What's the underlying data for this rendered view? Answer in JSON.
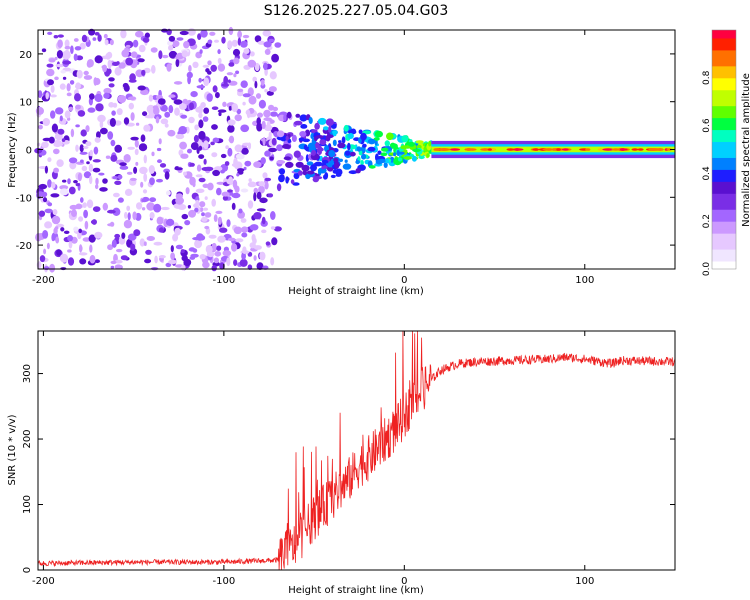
{
  "title": "S126.2025.227.05.04.G03",
  "colors": {
    "axis": "#000000",
    "snr_line": "#ee2222",
    "colormap": [
      "#ffffff",
      "#f0e6ff",
      "#e6c8ff",
      "#cc99ff",
      "#a366ff",
      "#7a2ee6",
      "#5a10d0",
      "#1e1eff",
      "#0080ff",
      "#00d0ff",
      "#00ffc0",
      "#00ff40",
      "#60ff00",
      "#c0ff00",
      "#ffff00",
      "#ffc000",
      "#ff7000",
      "#ff2000",
      "#ff0040"
    ]
  },
  "chart_data": [
    {
      "type": "heatmap",
      "name": "spectrogram",
      "xlabel": "Height of straight line (km)",
      "ylabel": "Frequency (Hz)",
      "xlim": [
        -203,
        150
      ],
      "ylim": [
        -25,
        25
      ],
      "xticks": [
        -200,
        -100,
        0,
        100
      ],
      "yticks": [
        -20,
        -10,
        0,
        10,
        20
      ],
      "noise_region_x": [
        -203,
        -70
      ],
      "signal_band_hz": 0,
      "transition_x": [
        -70,
        15
      ],
      "stable_x": [
        15,
        150
      ],
      "colorbar": {
        "label": "Normalized spectral amplitude",
        "ticks": [
          0.0,
          0.2,
          0.4,
          0.6,
          0.8
        ],
        "range": [
          0,
          1
        ]
      }
    },
    {
      "type": "line",
      "name": "snr",
      "xlabel": "Height of straight line (km)",
      "ylabel": "SNR (10 * v/v)",
      "xlim": [
        -203,
        150
      ],
      "ylim": [
        0,
        365
      ],
      "xticks": [
        -200,
        -100,
        0,
        100
      ],
      "yticks": [
        0,
        100,
        200,
        300
      ],
      "series": [
        {
          "name": "SNR",
          "x": [
            -203,
            -150,
            -100,
            -70,
            -60,
            -50,
            -40,
            -30,
            -25,
            -20,
            -15,
            -10,
            -5,
            0,
            5,
            10,
            15,
            20,
            25,
            30,
            40,
            60,
            80,
            90,
            100,
            115,
            120,
            150
          ],
          "y": [
            10,
            12,
            12,
            15,
            40,
            80,
            110,
            140,
            160,
            170,
            185,
            200,
            215,
            235,
            260,
            275,
            290,
            305,
            310,
            315,
            318,
            320,
            322,
            325,
            322,
            315,
            320,
            318
          ]
        }
      ]
    }
  ]
}
